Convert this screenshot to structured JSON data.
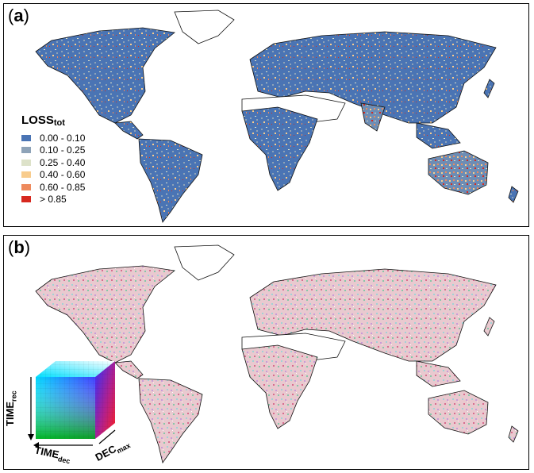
{
  "panel_a": {
    "label": "a",
    "legend": {
      "title_main": "LOSS",
      "title_sub": "tot",
      "items": [
        {
          "label": "0.00 - 0.10",
          "color": "#4a74b4"
        },
        {
          "label": "0.10 - 0.25",
          "color": "#8ea3b8"
        },
        {
          "label": "0.25 - 0.40",
          "color": "#dde2c9"
        },
        {
          "label": "0.40 - 0.60",
          "color": "#f8cc8d"
        },
        {
          "label": "0.60 - 0.85",
          "color": "#ee8a5d"
        },
        {
          "label": "> 0.85",
          "color": "#d7281f"
        }
      ]
    }
  },
  "panel_b": {
    "label": "b",
    "cube_axes": {
      "time_rec_main": "TIME",
      "time_rec_sub": "rec",
      "time_dec_main": "TIME",
      "time_dec_sub": "dec",
      "dec_max_main": "DEC",
      "dec_max_sub": "max"
    }
  }
}
